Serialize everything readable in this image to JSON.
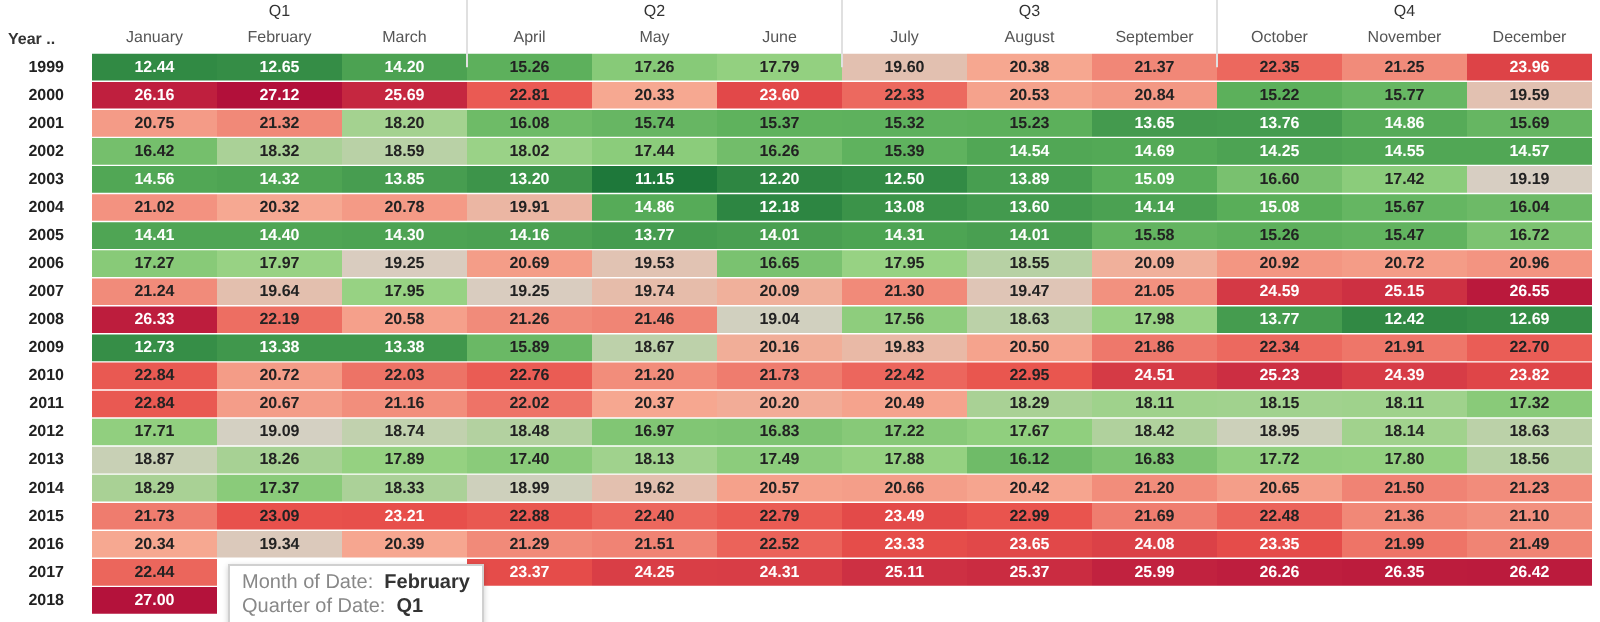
{
  "chart_data": {
    "type": "heatmap",
    "ylabel": "Year ..",
    "categories": [
      "January",
      "February",
      "March",
      "April",
      "May",
      "June",
      "July",
      "August",
      "September",
      "October",
      "November",
      "December"
    ],
    "y_categories": [
      "1999",
      "2000",
      "2001",
      "2002",
      "2003",
      "2004",
      "2005",
      "2006",
      "2007",
      "2008",
      "2009",
      "2010",
      "2011",
      "2012",
      "2013",
      "2014",
      "2015",
      "2016",
      "2017",
      "2018"
    ],
    "cells": [
      [
        12.44,
        12.65,
        14.2,
        15.26,
        17.26,
        17.79,
        19.6,
        20.38,
        21.37,
        22.35,
        21.25,
        23.96
      ],
      [
        26.16,
        27.12,
        25.69,
        22.81,
        20.33,
        23.6,
        22.33,
        20.53,
        20.84,
        15.22,
        15.77,
        19.59
      ],
      [
        20.75,
        21.32,
        18.2,
        16.08,
        15.74,
        15.37,
        15.32,
        15.23,
        13.65,
        13.76,
        14.86,
        15.69
      ],
      [
        16.42,
        18.32,
        18.59,
        18.02,
        17.44,
        16.26,
        15.39,
        14.54,
        14.69,
        14.25,
        14.55,
        14.57
      ],
      [
        14.56,
        14.32,
        13.85,
        13.2,
        11.15,
        12.2,
        12.5,
        13.89,
        15.09,
        16.6,
        17.42,
        19.19
      ],
      [
        21.02,
        20.32,
        20.78,
        19.91,
        14.86,
        12.18,
        13.08,
        13.6,
        14.14,
        15.08,
        15.67,
        16.04
      ],
      [
        14.41,
        14.4,
        14.3,
        14.16,
        13.77,
        14.01,
        14.31,
        14.01,
        15.58,
        15.26,
        15.47,
        16.72
      ],
      [
        17.27,
        17.97,
        19.25,
        20.69,
        19.53,
        16.65,
        17.95,
        18.55,
        20.09,
        20.92,
        20.72,
        20.96
      ],
      [
        21.24,
        19.64,
        17.95,
        19.25,
        19.74,
        20.09,
        21.3,
        19.47,
        21.05,
        24.59,
        25.15,
        26.55
      ],
      [
        26.33,
        22.19,
        20.58,
        21.26,
        21.46,
        19.04,
        17.56,
        18.63,
        17.98,
        13.77,
        12.42,
        12.69
      ],
      [
        12.73,
        13.38,
        13.38,
        15.89,
        18.67,
        20.16,
        19.83,
        20.5,
        21.86,
        22.34,
        21.91,
        22.7
      ],
      [
        22.84,
        20.72,
        22.03,
        22.76,
        21.2,
        21.73,
        22.42,
        22.95,
        24.51,
        25.23,
        24.39,
        23.82
      ],
      [
        22.84,
        20.67,
        21.16,
        22.02,
        20.37,
        20.2,
        20.49,
        18.29,
        18.11,
        18.15,
        18.11,
        17.32
      ],
      [
        17.71,
        19.09,
        18.74,
        18.48,
        16.97,
        16.83,
        17.22,
        17.67,
        18.42,
        18.95,
        18.14,
        18.63
      ],
      [
        18.87,
        18.26,
        17.89,
        17.4,
        18.13,
        17.49,
        17.88,
        16.12,
        16.83,
        17.72,
        17.8,
        18.56
      ],
      [
        18.29,
        17.37,
        18.33,
        18.99,
        19.62,
        20.57,
        20.66,
        20.42,
        21.2,
        20.65,
        21.5,
        21.23
      ],
      [
        21.73,
        23.09,
        23.21,
        22.88,
        22.4,
        22.79,
        23.49,
        22.99,
        21.69,
        22.48,
        21.36,
        21.1
      ],
      [
        20.34,
        19.34,
        20.39,
        21.29,
        21.51,
        22.52,
        23.33,
        23.65,
        24.08,
        23.35,
        21.99,
        21.49
      ],
      [
        22.44,
        null,
        null,
        23.37,
        24.25,
        24.31,
        25.11,
        25.37,
        25.99,
        26.26,
        26.35,
        26.42
      ],
      [
        27.0,
        null,
        null,
        null,
        null,
        null,
        null,
        null,
        null,
        null,
        null,
        null
      ]
    ],
    "cell_labels": [
      [
        "12.44",
        "12.65",
        "14.20",
        "15.26",
        "17.26",
        "17.79",
        "19.60",
        "20.38",
        "21.37",
        "22.35",
        "21.25",
        "23.96"
      ],
      [
        "26.16",
        "27.12",
        "25.69",
        "22.81",
        "20.33",
        "23.60",
        "22.33",
        "20.53",
        "20.84",
        "15.22",
        "15.77",
        "19.59"
      ],
      [
        "20.75",
        "21.32",
        "18.20",
        "16.08",
        "15.74",
        "15.37",
        "15.32",
        "15.23",
        "13.65",
        "13.76",
        "14.86",
        "15.69"
      ],
      [
        "16.42",
        "18.32",
        "18.59",
        "18.02",
        "17.44",
        "16.26",
        "15.39",
        "14.54",
        "14.69",
        "14.25",
        "14.55",
        "14.57"
      ],
      [
        "14.56",
        "14.32",
        "13.85",
        "13.20",
        "11.15",
        "12.20",
        "12.50",
        "13.89",
        "15.09",
        "16.60",
        "17.42",
        "19.19"
      ],
      [
        "21.02",
        "20.32",
        "20.78",
        "19.91",
        "14.86",
        "12.18",
        "13.08",
        "13.60",
        "14.14",
        "15.08",
        "15.67",
        "16.04"
      ],
      [
        "14.41",
        "14.40",
        "14.30",
        "14.16",
        "13.77",
        "14.01",
        "14.31",
        "14.01",
        "15.58",
        "15.26",
        "15.47",
        "16.72"
      ],
      [
        "17.27",
        "17.97",
        "19.25",
        "20.69",
        "19.53",
        "16.65",
        "17.95",
        "18.55",
        "20.09",
        "20.92",
        "20.72",
        "20.96"
      ],
      [
        "21.24",
        "19.64",
        "17.95",
        "19.25",
        "19.74",
        "20.09",
        "21.30",
        "19.47",
        "21.05",
        "24.59",
        "25.15",
        "26.55"
      ],
      [
        "26.33",
        "22.19",
        "20.58",
        "21.26",
        "21.46",
        "19.04",
        "17.56",
        "18.63",
        "17.98",
        "13.77",
        "12.42",
        "12.69"
      ],
      [
        "12.73",
        "13.38",
        "13.38",
        "15.89",
        "18.67",
        "20.16",
        "19.83",
        "20.50",
        "21.86",
        "22.34",
        "21.91",
        "22.70"
      ],
      [
        "22.84",
        "20.72",
        "22.03",
        "22.76",
        "21.20",
        "21.73",
        "22.42",
        "22.95",
        "24.51",
        "25.23",
        "24.39",
        "23.82"
      ],
      [
        "22.84",
        "20.67",
        "21.16",
        "22.02",
        "20.37",
        "20.20",
        "20.49",
        "18.29",
        "18.11",
        "18.15",
        "18.11",
        "17.32"
      ],
      [
        "17.71",
        "19.09",
        "18.74",
        "18.48",
        "16.97",
        "16.83",
        "17.22",
        "17.67",
        "18.42",
        "18.95",
        "18.14",
        "18.63"
      ],
      [
        "18.87",
        "18.26",
        "17.89",
        "17.40",
        "18.13",
        "17.49",
        "17.88",
        "16.12",
        "16.83",
        "17.72",
        "17.80",
        "18.56"
      ],
      [
        "18.29",
        "17.37",
        "18.33",
        "18.99",
        "19.62",
        "20.57",
        "20.66",
        "20.42",
        "21.20",
        "20.65",
        "21.50",
        "21.23"
      ],
      [
        "21.73",
        "23.09",
        "23.21",
        "22.88",
        "22.40",
        "22.79",
        "23.49",
        "22.99",
        "21.69",
        "22.48",
        "21.36",
        "21.10"
      ],
      [
        "20.34",
        "19.34",
        "20.39",
        "21.29",
        "21.51",
        "22.52",
        "23.33",
        "23.65",
        "24.08",
        "23.35",
        "21.99",
        "21.49"
      ],
      [
        "22.44",
        null,
        null,
        "23.37",
        "24.25",
        "24.31",
        "25.11",
        "25.37",
        "25.99",
        "26.26",
        "26.35",
        "26.42"
      ],
      [
        "27.00",
        null,
        null,
        null,
        null,
        null,
        null,
        null,
        null,
        null,
        null,
        null
      ]
    ],
    "annotations": [
      "Q1",
      "Q2",
      "Q3",
      "Q4",
      "Month of Date:  February",
      "Quarter of Date:  Q1"
    ]
  }
}
